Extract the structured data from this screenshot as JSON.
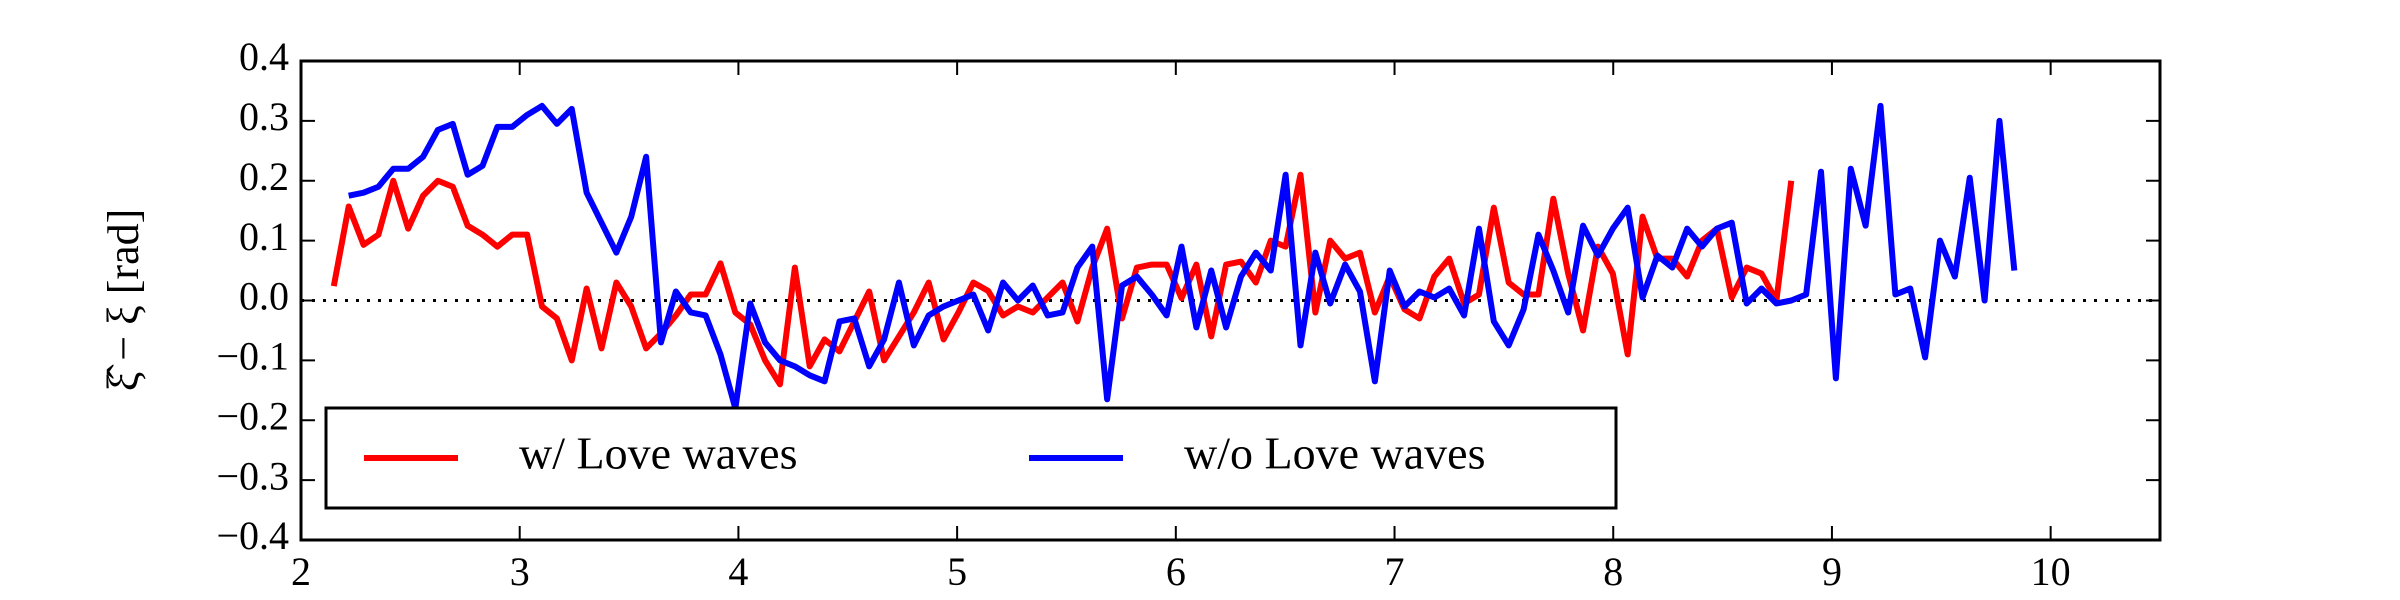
{
  "chart_data": {
    "type": "line",
    "y_label": "ξ̂ − ξ [rad]",
    "xlim": [
      2,
      10.5
    ],
    "ylim": [
      -0.4,
      0.4
    ],
    "xticks": [
      2,
      3,
      4,
      5,
      6,
      7,
      8,
      9,
      10
    ],
    "yticks": [
      0.4,
      0.3,
      0.2,
      0.1,
      {
        "value": 0,
        "label": "0.0"
      },
      {
        "value": -0.1,
        "label": "−0.1"
      },
      {
        "value": -0.2,
        "label": "−0.2"
      },
      {
        "value": -0.3,
        "label": "−0.3"
      },
      {
        "value": -0.4,
        "label": "−0.4"
      }
    ],
    "reference_line": 0,
    "legend_position": "lower left",
    "x": [
      2.15,
      2.218,
      2.286,
      2.354,
      2.422,
      2.49,
      2.558,
      2.626,
      2.694,
      2.762,
      2.83,
      2.898,
      2.966,
      3.034,
      3.102,
      3.17,
      3.238,
      3.306,
      3.374,
      3.442,
      3.51,
      3.578,
      3.646,
      3.714,
      3.782,
      3.85,
      3.918,
      3.986,
      4.054,
      4.122,
      4.19,
      4.258,
      4.326,
      4.394,
      4.462,
      4.53,
      4.598,
      4.666,
      4.734,
      4.802,
      4.87,
      4.938,
      5.006,
      5.074,
      5.142,
      5.21,
      5.278,
      5.346,
      5.414,
      5.482,
      5.55,
      5.618,
      5.686,
      5.754,
      5.822,
      5.89,
      5.958,
      6.026,
      6.094,
      6.162,
      6.23,
      6.298,
      6.366,
      6.434,
      6.502,
      6.57,
      6.638,
      6.706,
      6.774,
      6.842,
      6.91,
      6.978,
      7.046,
      7.114,
      7.182,
      7.25,
      7.318,
      7.386,
      7.454,
      7.522,
      7.59,
      7.658,
      7.726,
      7.794,
      7.862,
      7.93,
      7.998,
      8.066,
      8.134,
      8.202,
      8.27,
      8.338,
      8.406,
      8.474,
      8.542,
      8.61,
      8.678,
      8.746,
      8.814,
      8.882,
      8.95,
      9.018,
      9.086,
      9.154,
      9.222,
      9.29,
      9.358,
      9.426,
      9.494,
      9.562,
      9.63,
      9.698,
      9.766,
      9.834
    ],
    "series": [
      {
        "name": "w/ Love waves",
        "color": "#ff0000",
        "values": [
          0.024,
          0.157,
          0.093,
          0.11,
          0.2,
          0.12,
          0.175,
          0.2,
          0.19,
          0.125,
          0.11,
          0.09,
          0.11,
          0.11,
          -0.01,
          -0.03,
          -0.1,
          0.02,
          -0.08,
          0.03,
          -0.01,
          -0.08,
          -0.055,
          -0.025,
          0.01,
          0.01,
          0.062,
          -0.02,
          -0.04,
          -0.1,
          -0.14,
          0.055,
          -0.11,
          -0.065,
          -0.085,
          -0.035,
          0.015,
          -0.1,
          -0.06,
          -0.02,
          0.03,
          -0.065,
          -0.02,
          0.03,
          0.016,
          -0.025,
          -0.01,
          -0.02,
          0.005,
          0.03,
          -0.035,
          0.055,
          0.12,
          -0.03,
          0.055,
          0.06,
          0.06,
          0.004,
          0.06,
          -0.06,
          0.06,
          0.065,
          0.03,
          0.1,
          0.09,
          0.21,
          -0.02,
          0.1,
          0.07,
          0.08,
          -0.02,
          0.04,
          -0.015,
          -0.03,
          0.04,
          0.07,
          -0.005,
          0.01,
          0.155,
          0.03,
          0.01,
          0.01,
          0.17,
          0.045,
          -0.05,
          0.09,
          0.045,
          -0.09,
          0.14,
          0.07,
          0.07,
          0.04,
          0.1,
          0.12,
          0.005,
          0.055,
          0.045,
          0.0,
          0.2,
          null,
          null,
          null,
          null,
          null,
          null,
          null,
          null,
          null,
          null,
          null,
          null,
          null,
          null,
          null
        ]
      },
      {
        "name": "w/o Love waves",
        "color": "#0000ff",
        "values": [
          null,
          0.175,
          0.18,
          0.19,
          0.22,
          0.22,
          0.24,
          0.285,
          0.295,
          0.21,
          0.225,
          0.29,
          0.29,
          0.31,
          0.325,
          0.295,
          0.32,
          0.18,
          0.13,
          0.08,
          0.14,
          0.24,
          -0.07,
          0.015,
          -0.02,
          -0.025,
          -0.09,
          -0.18,
          -0.005,
          -0.07,
          -0.1,
          -0.11,
          -0.125,
          -0.135,
          -0.035,
          -0.03,
          -0.11,
          -0.065,
          0.03,
          -0.075,
          -0.025,
          -0.01,
          0.0,
          0.01,
          -0.05,
          0.03,
          0.0,
          0.025,
          -0.025,
          -0.02,
          0.055,
          0.09,
          -0.165,
          0.025,
          0.04,
          0.01,
          -0.025,
          0.09,
          -0.045,
          0.05,
          -0.045,
          0.04,
          0.08,
          0.05,
          0.21,
          -0.075,
          0.08,
          -0.005,
          0.06,
          0.015,
          -0.135,
          0.05,
          -0.01,
          0.015,
          0.005,
          0.02,
          -0.025,
          0.12,
          -0.035,
          -0.075,
          -0.015,
          0.11,
          0.05,
          -0.02,
          0.125,
          0.075,
          0.12,
          0.155,
          0.005,
          0.075,
          0.055,
          0.12,
          0.09,
          0.12,
          0.13,
          -0.005,
          0.02,
          -0.005,
          0.0,
          0.01,
          0.215,
          -0.13,
          0.22,
          0.125,
          0.325,
          0.01,
          0.02,
          -0.095,
          0.1,
          0.04,
          0.205,
          0.0,
          0.3,
          0.05
        ]
      }
    ]
  }
}
